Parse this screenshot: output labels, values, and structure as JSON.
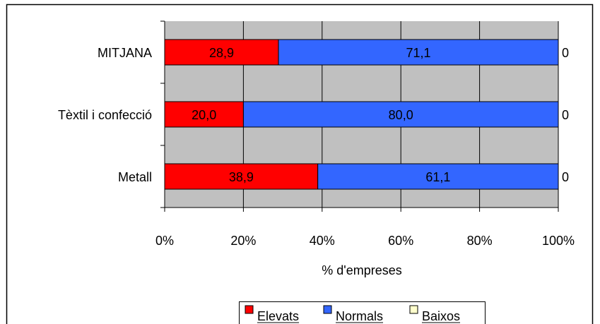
{
  "chart_data": {
    "type": "bar",
    "orientation": "horizontal",
    "stacked": "percent",
    "categories": [
      "Metall",
      "Tèxtil i confecció",
      "MITJANA"
    ],
    "series": [
      {
        "name": "Elevats",
        "values": [
          38.9,
          20.0,
          28.9
        ],
        "labels": [
          "38,9",
          "20,0",
          "28,9"
        ],
        "color": "#ff0000"
      },
      {
        "name": "Normals",
        "values": [
          61.1,
          80.0,
          71.1
        ],
        "labels": [
          "61,1",
          "80,0",
          "71,1"
        ],
        "color": "#3366ff"
      },
      {
        "name": "Baixos",
        "values": [
          0,
          0,
          0
        ],
        "labels": [
          "0",
          "0",
          "0"
        ],
        "color": "#ffffcc"
      }
    ],
    "x_ticks": [
      "0%",
      "20%",
      "40%",
      "60%",
      "80%",
      "100%"
    ],
    "xlim": [
      0,
      100
    ],
    "xlabel": "% d'empreses",
    "ylabel": "",
    "title": "",
    "grid": true,
    "legend_position": "bottom",
    "plot_background": "#c0c0c0"
  }
}
